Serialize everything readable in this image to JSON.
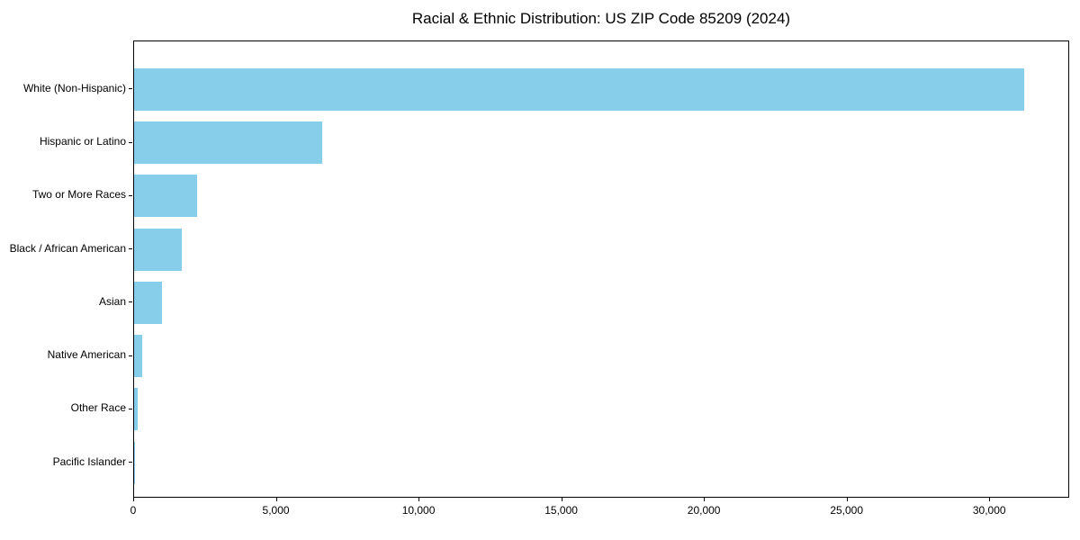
{
  "chart_data": {
    "type": "bar",
    "orientation": "horizontal",
    "title": "Racial & Ethnic Distribution: US ZIP Code 85209 (2024)",
    "categories": [
      "White (Non-Hispanic)",
      "Hispanic or Latino",
      "Two or More Races",
      "Black / African American",
      "Asian",
      "Native American",
      "Other Race",
      "Pacific Islander"
    ],
    "values": [
      31200,
      6580,
      2210,
      1670,
      980,
      275,
      120,
      15
    ],
    "xlabel": "",
    "ylabel": "",
    "xlim": [
      0,
      32800
    ],
    "xticks": [
      0,
      5000,
      10000,
      15000,
      20000,
      25000,
      30000
    ],
    "xtick_labels": [
      "0",
      "5,000",
      "10,000",
      "15,000",
      "20,000",
      "25,000",
      "30,000"
    ],
    "bar_color": "#87CEEB",
    "grid": false,
    "legend": null,
    "background_color": "#ffffff",
    "spine_color": "#000000"
  }
}
